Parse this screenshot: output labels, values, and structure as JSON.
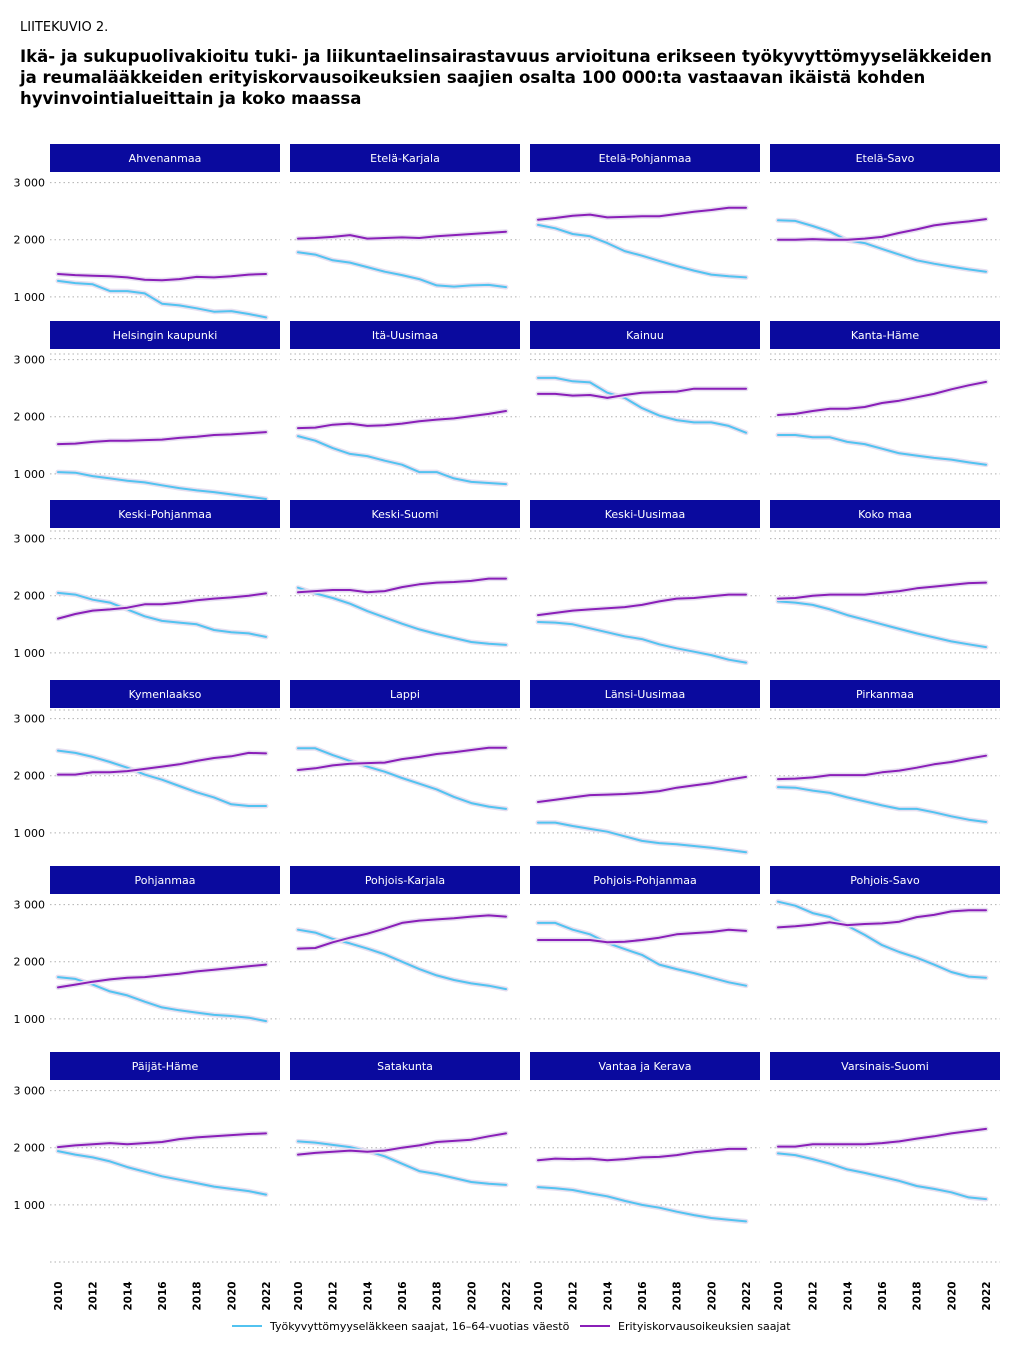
{
  "header": {
    "label": "LIITEKUVIO 2.",
    "title": "Ikä- ja sukupuolivakioitu tuki- ja liikuntaelinsairastavuus arvioituna erikseen työkyvyttömyyseläkkeiden ja reumalääkkeiden erityiskorvausoikeuksien saajien osalta 100 000:ta vastaavan ikäistä kohden hyvinvointialueittain ja koko maassa"
  },
  "colors": {
    "panel_header": "#0a0a9e",
    "series_light": "#52c3f0",
    "series_purple": "#8a1fb8",
    "grid": "#b0b0b0"
  },
  "chart_data": {
    "type": "line",
    "layout": "small-multiples",
    "x": [
      2010,
      2011,
      2012,
      2013,
      2014,
      2015,
      2016,
      2017,
      2018,
      2019,
      2020,
      2021,
      2022
    ],
    "x_tick_labels": [
      "2010",
      "2012",
      "2014",
      "2016",
      "2018",
      "2020",
      "2022"
    ],
    "y_tick_labels": [
      "3 000",
      "2 000",
      "1 000"
    ],
    "y_ticks": [
      3000,
      2000,
      1000
    ],
    "ylim": [
      0,
      3500
    ],
    "grid": true,
    "legend_position": "bottom",
    "series_names": [
      "Työkyvyttömyyseläkkeen saajat, 16–64-vuotias väestö",
      "Erityiskorvausoikeuksien saajat"
    ],
    "panels": [
      {
        "name": "Ahvenanmaa",
        "series": [
          [
            1280,
            1240,
            1220,
            1100,
            1100,
            1060,
            880,
            850,
            800,
            740,
            750,
            700,
            640
          ],
          [
            1400,
            1380,
            1370,
            1360,
            1340,
            1300,
            1290,
            1310,
            1350,
            1340,
            1360,
            1390,
            1400
          ]
        ]
      },
      {
        "name": "Etelä-Karjala",
        "series": [
          [
            1780,
            1740,
            1640,
            1600,
            1520,
            1440,
            1380,
            1310,
            1200,
            1180,
            1200,
            1210,
            1170
          ],
          [
            2020,
            2030,
            2050,
            2080,
            2020,
            2030,
            2040,
            2030,
            2060,
            2080,
            2100,
            2120,
            2140
          ]
        ]
      },
      {
        "name": "Etelä-Pohjanmaa",
        "series": [
          [
            2260,
            2200,
            2100,
            2060,
            1940,
            1800,
            1720,
            1630,
            1540,
            1460,
            1390,
            1360,
            1340
          ],
          [
            2350,
            2380,
            2420,
            2440,
            2390,
            2400,
            2410,
            2410,
            2450,
            2490,
            2520,
            2560,
            2560
          ]
        ]
      },
      {
        "name": "Etelä-Savo",
        "series": [
          [
            2340,
            2330,
            2240,
            2140,
            1990,
            1940,
            1840,
            1740,
            1640,
            1580,
            1530,
            1480,
            1440
          ],
          [
            2000,
            2000,
            2010,
            2000,
            2000,
            2020,
            2050,
            2120,
            2180,
            2250,
            2290,
            2320,
            2360
          ]
        ]
      },
      {
        "name": "Helsingin kaupunki",
        "series": [
          [
            1030,
            1020,
            960,
            920,
            880,
            850,
            800,
            750,
            710,
            680,
            640,
            600,
            560
          ],
          [
            1520,
            1530,
            1560,
            1580,
            1580,
            1590,
            1600,
            1630,
            1650,
            1680,
            1690,
            1710,
            1730
          ]
        ]
      },
      {
        "name": "Itä-Uusimaa",
        "series": [
          [
            1660,
            1580,
            1450,
            1350,
            1310,
            1230,
            1160,
            1030,
            1030,
            920,
            860,
            840,
            820
          ],
          [
            1800,
            1810,
            1860,
            1880,
            1840,
            1850,
            1880,
            1920,
            1950,
            1970,
            2010,
            2050,
            2100
          ]
        ]
      },
      {
        "name": "Kainuu",
        "series": [
          [
            2680,
            2680,
            2620,
            2600,
            2420,
            2330,
            2150,
            2020,
            1940,
            1900,
            1900,
            1840,
            1720
          ],
          [
            2400,
            2400,
            2370,
            2380,
            2330,
            2380,
            2420,
            2430,
            2440,
            2490,
            2490,
            2490,
            2490
          ]
        ]
      },
      {
        "name": "Kanta-Häme",
        "series": [
          [
            1680,
            1680,
            1640,
            1640,
            1560,
            1520,
            1440,
            1360,
            1320,
            1280,
            1250,
            1200,
            1160
          ],
          [
            2030,
            2050,
            2100,
            2140,
            2140,
            2170,
            2240,
            2280,
            2340,
            2400,
            2480,
            2550,
            2610
          ]
        ]
      },
      {
        "name": "Keski-Pohjanmaa",
        "series": [
          [
            2050,
            2020,
            1930,
            1880,
            1760,
            1640,
            1560,
            1530,
            1500,
            1400,
            1360,
            1340,
            1280
          ],
          [
            1600,
            1680,
            1740,
            1760,
            1790,
            1850,
            1850,
            1880,
            1920,
            1950,
            1970,
            2000,
            2040
          ]
        ]
      },
      {
        "name": "Keski-Suomi",
        "series": [
          [
            2140,
            2040,
            1960,
            1860,
            1730,
            1620,
            1510,
            1410,
            1330,
            1260,
            1190,
            1160,
            1140
          ],
          [
            2060,
            2080,
            2100,
            2100,
            2060,
            2080,
            2150,
            2200,
            2230,
            2240,
            2260,
            2300,
            2300
          ]
        ]
      },
      {
        "name": "Keski-Uusimaa",
        "series": [
          [
            1540,
            1530,
            1500,
            1430,
            1360,
            1290,
            1240,
            1150,
            1080,
            1020,
            960,
            880,
            830
          ],
          [
            1660,
            1700,
            1740,
            1760,
            1780,
            1800,
            1840,
            1900,
            1950,
            1960,
            1990,
            2020,
            2020
          ]
        ]
      },
      {
        "name": "Koko maa",
        "series": [
          [
            1900,
            1880,
            1840,
            1760,
            1660,
            1580,
            1500,
            1420,
            1340,
            1270,
            1200,
            1150,
            1100
          ],
          [
            1950,
            1960,
            2000,
            2020,
            2020,
            2020,
            2050,
            2080,
            2130,
            2160,
            2190,
            2220,
            2230
          ]
        ]
      },
      {
        "name": "Kymenlaakso",
        "series": [
          [
            2440,
            2400,
            2330,
            2240,
            2140,
            2020,
            1930,
            1820,
            1710,
            1620,
            1500,
            1470,
            1470
          ],
          [
            2020,
            2020,
            2060,
            2060,
            2080,
            2120,
            2160,
            2200,
            2260,
            2310,
            2340,
            2400,
            2390
          ]
        ]
      },
      {
        "name": "Lappi",
        "series": [
          [
            2480,
            2480,
            2360,
            2260,
            2160,
            2070,
            1960,
            1860,
            1760,
            1630,
            1520,
            1460,
            1420
          ],
          [
            2100,
            2130,
            2180,
            2210,
            2220,
            2230,
            2290,
            2330,
            2380,
            2410,
            2450,
            2490,
            2490
          ]
        ]
      },
      {
        "name": "Länsi-Uusimaa",
        "series": [
          [
            1180,
            1180,
            1120,
            1070,
            1020,
            940,
            860,
            820,
            800,
            770,
            740,
            700,
            660
          ],
          [
            1540,
            1580,
            1620,
            1660,
            1670,
            1680,
            1700,
            1730,
            1790,
            1830,
            1870,
            1930,
            1980
          ]
        ]
      },
      {
        "name": "Pirkanmaa",
        "series": [
          [
            1800,
            1790,
            1740,
            1700,
            1620,
            1550,
            1480,
            1420,
            1420,
            1360,
            1290,
            1230,
            1190
          ],
          [
            1940,
            1950,
            1970,
            2010,
            2010,
            2010,
            2060,
            2090,
            2140,
            2200,
            2240,
            2300,
            2350
          ]
        ]
      },
      {
        "name": "Pohjanmaa",
        "series": [
          [
            1730,
            1700,
            1600,
            1480,
            1410,
            1300,
            1200,
            1150,
            1110,
            1070,
            1050,
            1020,
            960
          ],
          [
            1550,
            1600,
            1650,
            1690,
            1720,
            1730,
            1760,
            1790,
            1830,
            1860,
            1890,
            1920,
            1950
          ]
        ]
      },
      {
        "name": "Pohjois-Karjala",
        "series": [
          [
            2560,
            2510,
            2400,
            2320,
            2230,
            2130,
            2000,
            1870,
            1760,
            1680,
            1620,
            1580,
            1520
          ],
          [
            2230,
            2240,
            2340,
            2420,
            2490,
            2580,
            2680,
            2720,
            2740,
            2760,
            2790,
            2810,
            2790
          ]
        ]
      },
      {
        "name": "Pohjois-Pohjanmaa",
        "series": [
          [
            2680,
            2680,
            2560,
            2480,
            2330,
            2220,
            2120,
            1950,
            1870,
            1800,
            1720,
            1640,
            1580
          ],
          [
            2380,
            2380,
            2380,
            2380,
            2340,
            2350,
            2380,
            2420,
            2480,
            2500,
            2520,
            2560,
            2540
          ]
        ]
      },
      {
        "name": "Pohjois-Savo",
        "series": [
          [
            3050,
            2980,
            2850,
            2780,
            2630,
            2470,
            2290,
            2170,
            2070,
            1950,
            1820,
            1740,
            1720
          ],
          [
            2600,
            2620,
            2650,
            2690,
            2640,
            2660,
            2670,
            2700,
            2780,
            2820,
            2880,
            2900,
            2900
          ]
        ]
      },
      {
        "name": "Päijät-Häme",
        "series": [
          [
            1940,
            1880,
            1830,
            1760,
            1660,
            1580,
            1500,
            1440,
            1380,
            1320,
            1280,
            1240,
            1180
          ],
          [
            2010,
            2040,
            2060,
            2080,
            2060,
            2080,
            2100,
            2150,
            2180,
            2200,
            2220,
            2240,
            2250
          ]
        ]
      },
      {
        "name": "Satakunta",
        "series": [
          [
            2110,
            2090,
            2050,
            2010,
            1940,
            1850,
            1720,
            1590,
            1540,
            1470,
            1400,
            1370,
            1350
          ],
          [
            1880,
            1910,
            1930,
            1950,
            1930,
            1950,
            2000,
            2040,
            2100,
            2120,
            2140,
            2200,
            2250
          ]
        ]
      },
      {
        "name": "Vantaa ja Kerava",
        "series": [
          [
            1310,
            1290,
            1260,
            1200,
            1150,
            1070,
            1000,
            950,
            880,
            820,
            770,
            740,
            710
          ],
          [
            1780,
            1810,
            1800,
            1810,
            1780,
            1800,
            1830,
            1840,
            1870,
            1920,
            1950,
            1980,
            1980
          ]
        ]
      },
      {
        "name": "Varsinais-Suomi",
        "series": [
          [
            1900,
            1870,
            1800,
            1720,
            1620,
            1560,
            1490,
            1420,
            1330,
            1280,
            1220,
            1130,
            1100
          ],
          [
            2020,
            2020,
            2060,
            2060,
            2060,
            2060,
            2080,
            2110,
            2160,
            2200,
            2250,
            2290,
            2330
          ]
        ]
      }
    ]
  }
}
